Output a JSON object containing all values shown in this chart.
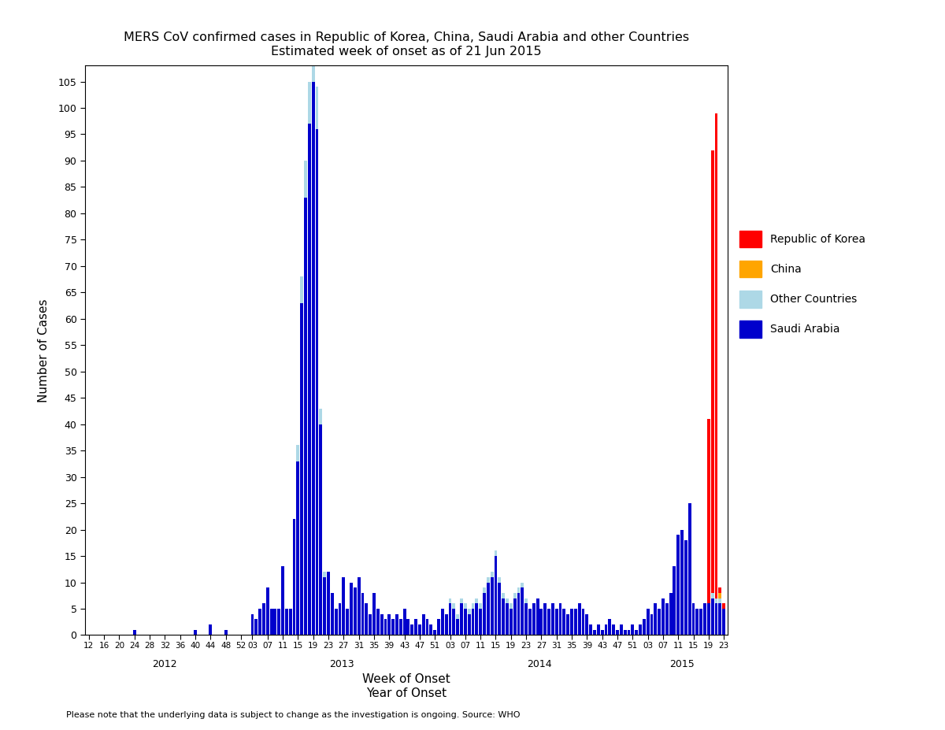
{
  "title_line1": "MERS CoV confirmed cases in Republic of Korea, China, Saudi Arabia and other Countries",
  "title_line2": "Estimated week of onset as of 21 Jun 2015",
  "xlabel_top": "Week of Onset",
  "xlabel_bottom": "Year of Onset",
  "ylabel": "Number of Cases",
  "footnote": "Please note that the underlying data is subject to change as the investigation is ongoing. Source: WHO",
  "colors": {
    "saudi": "#0000CC",
    "other": "#ADD8E6",
    "china": "#FFA500",
    "korea": "#FF0000"
  },
  "ylim": [
    0,
    108
  ],
  "yticks": [
    0,
    5,
    10,
    15,
    20,
    25,
    30,
    35,
    40,
    45,
    50,
    55,
    60,
    65,
    70,
    75,
    80,
    85,
    90,
    95,
    100,
    105
  ],
  "bar_width": 0.8,
  "background_color": "#FFFFFF",
  "saudi_2012": {
    "24": 1,
    "40": 1,
    "44": 2,
    "48": 1
  },
  "saudi_2013": {
    "3": 4,
    "4": 3,
    "5": 5,
    "6": 6,
    "7": 9,
    "8": 5,
    "9": 5,
    "10": 5,
    "11": 13,
    "12": 5,
    "13": 5,
    "14": 22,
    "15": 33,
    "16": 63,
    "17": 83,
    "18": 97,
    "19": 105,
    "20": 96,
    "21": 40,
    "22": 11,
    "23": 12,
    "24": 8,
    "25": 5,
    "26": 6,
    "27": 11,
    "28": 5,
    "29": 10,
    "30": 9,
    "31": 11,
    "32": 8,
    "33": 6,
    "34": 4,
    "35": 8,
    "36": 5,
    "37": 4,
    "38": 3,
    "39": 4,
    "40": 3,
    "41": 4,
    "42": 3,
    "43": 5,
    "44": 3,
    "45": 2,
    "46": 3,
    "47": 2,
    "48": 4,
    "49": 3,
    "50": 2,
    "51": 1,
    "52": 3
  },
  "saudi_2014": {
    "1": 5,
    "2": 4,
    "3": 6,
    "4": 5,
    "5": 3,
    "6": 6,
    "7": 5,
    "8": 4,
    "9": 5,
    "10": 6,
    "11": 5,
    "12": 8,
    "13": 10,
    "14": 11,
    "15": 15,
    "16": 10,
    "17": 7,
    "18": 6,
    "19": 5,
    "20": 7,
    "21": 8,
    "22": 9,
    "23": 6,
    "24": 5,
    "25": 6,
    "26": 7,
    "27": 5,
    "28": 6,
    "29": 5,
    "30": 6,
    "31": 5,
    "32": 6,
    "33": 5,
    "34": 4,
    "35": 5,
    "36": 5,
    "37": 6,
    "38": 5,
    "39": 4,
    "40": 2,
    "41": 1,
    "42": 2,
    "43": 1,
    "44": 2,
    "45": 3,
    "46": 2,
    "47": 1,
    "48": 2,
    "49": 1,
    "50": 1,
    "51": 2,
    "52": 1
  },
  "saudi_2015": {
    "1": 2,
    "2": 3,
    "3": 5,
    "4": 4,
    "5": 6,
    "6": 5,
    "7": 7,
    "8": 6,
    "9": 8,
    "10": 13,
    "11": 19,
    "12": 20,
    "13": 18,
    "14": 25,
    "15": 6,
    "16": 5,
    "17": 5,
    "18": 6,
    "19": 6,
    "20": 7,
    "21": 6,
    "22": 6,
    "23": 5
  },
  "other_2013_weeks": [
    15,
    16,
    17,
    18,
    19,
    20,
    21,
    22
  ],
  "other_2014_weeks": [
    3,
    4,
    5,
    6,
    7,
    8,
    9,
    10,
    11,
    12,
    13,
    14,
    15,
    16,
    17,
    18,
    19,
    20,
    21,
    22,
    23
  ],
  "korea_2015": {
    "19": 35,
    "20": 84,
    "21": 92,
    "22": 1,
    "23": 1
  },
  "china_2015": {
    "22": 1
  },
  "other_2015": {
    "20": 1,
    "21": 1,
    "22": 1
  }
}
